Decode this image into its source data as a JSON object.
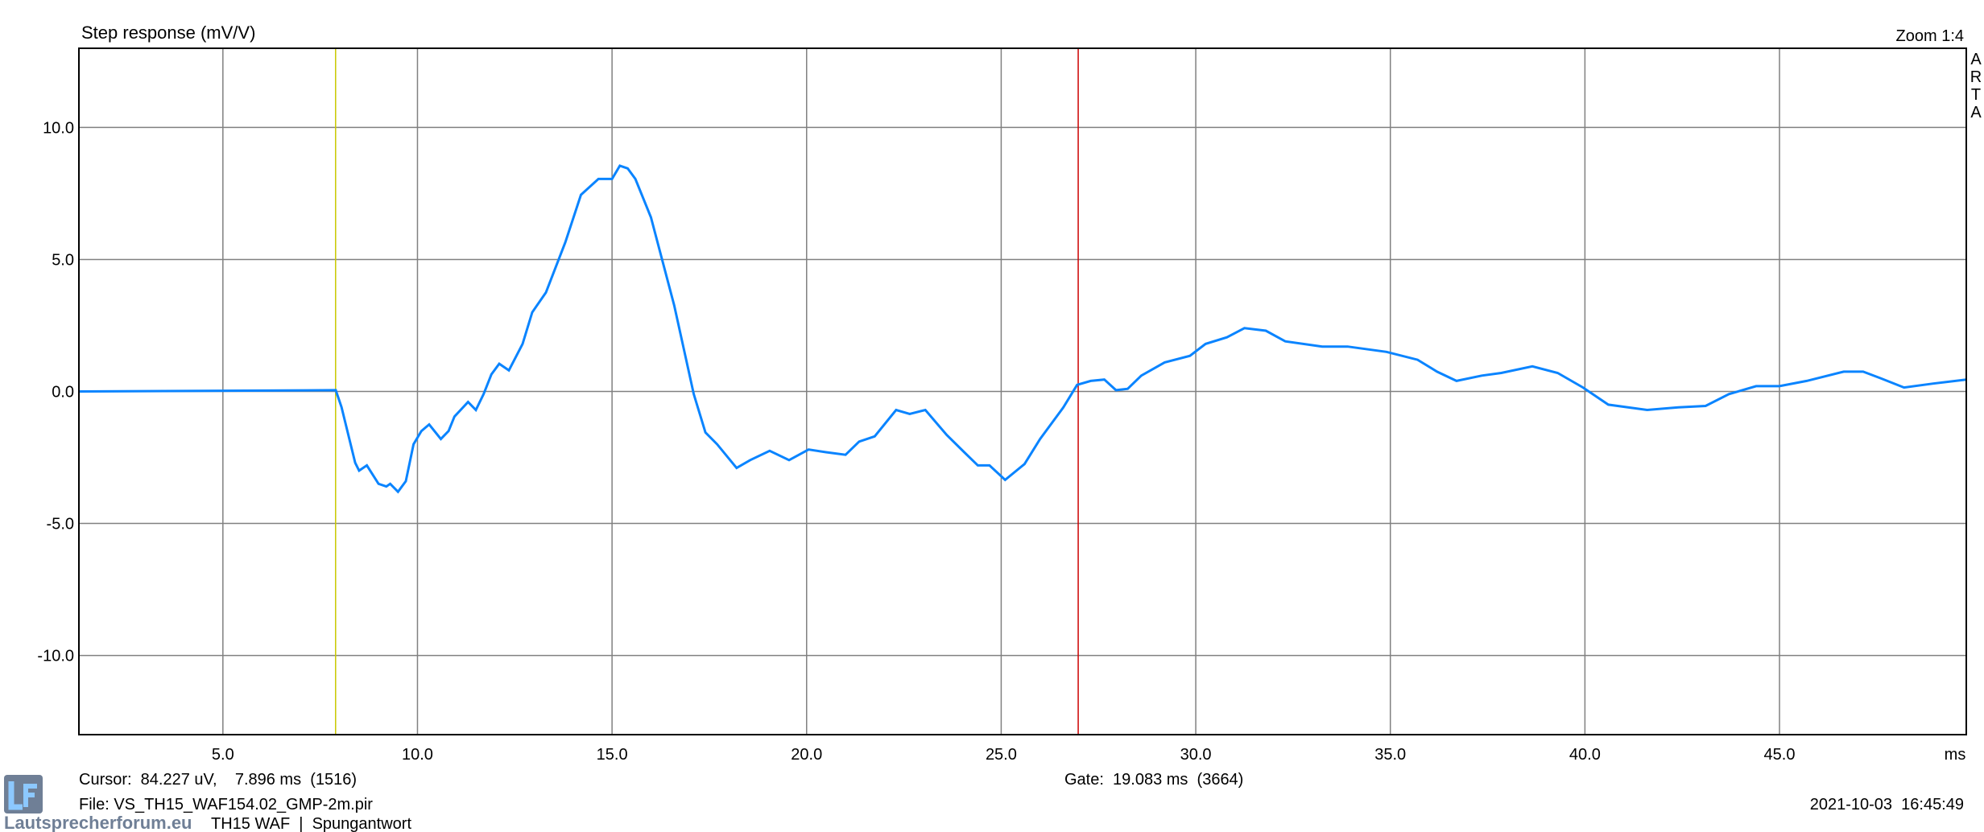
{
  "chart_data": {
    "type": "line",
    "title": "Step response (mV/V)",
    "zoom_label": "Zoom 1:4",
    "brand_vertical": "ARTA",
    "xlabel": "ms",
    "ylabel": "",
    "xlim": [
      1.3,
      49.8
    ],
    "ylim": [
      -13,
      13
    ],
    "x_ticks": [
      5,
      10,
      15,
      20,
      25,
      30,
      35,
      40,
      45
    ],
    "x_tick_labels": [
      "5.0",
      "10.0",
      "15.0",
      "20.0",
      "25.0",
      "30.0",
      "35.0",
      "40.0",
      "45.0"
    ],
    "y_ticks": [
      10,
      5,
      0,
      -5,
      -10
    ],
    "y_tick_labels": [
      "10.0",
      "5.0",
      "0.0",
      "-5.0",
      "-10.0"
    ],
    "grid": true,
    "cursor_ms": 7.896,
    "gate_end_ms": 26.979,
    "colors": {
      "series": "#0a84ff",
      "cursor": "#c8c800",
      "gate": "#cc0000",
      "grid": "#808080",
      "frame": "#000000"
    },
    "series": [
      {
        "x": [
          1.3,
          7.9,
          8.05,
          8.4,
          8.5,
          8.7,
          9.0,
          9.2,
          9.3,
          9.5,
          9.7,
          9.9,
          10.1,
          10.3,
          10.6,
          10.8,
          10.95,
          11.3,
          11.5,
          11.7,
          11.9,
          12.1,
          12.35,
          12.7,
          12.95,
          13.3,
          13.8,
          14.2,
          14.65,
          15.0,
          15.2,
          15.4,
          15.6,
          16.0,
          16.6,
          17.1,
          17.4,
          17.7,
          18.2,
          18.55,
          19.05,
          19.55,
          20.05,
          20.5,
          21.0,
          21.35,
          21.75,
          22.3,
          22.65,
          23.05,
          23.6,
          24.05,
          24.4,
          24.7,
          25.1,
          25.6,
          26.0,
          26.6,
          26.95,
          27.3,
          27.65,
          27.95,
          28.25,
          28.6,
          29.2,
          29.85,
          30.25,
          30.8,
          31.25,
          31.8,
          32.3,
          33.25,
          33.9,
          34.9,
          35.7,
          36.2,
          36.7,
          37.35,
          37.85,
          38.65,
          39.3,
          39.95,
          40.6,
          41.6,
          42.4,
          43.1,
          43.7,
          44.4,
          45.0,
          45.7,
          46.65,
          47.15,
          47.6,
          48.2,
          48.95,
          49.8
        ],
        "y": [
          0,
          0.05,
          -0.6,
          -2.7,
          -3.0,
          -2.8,
          -3.5,
          -3.6,
          -3.5,
          -3.8,
          -3.4,
          -2.0,
          -1.5,
          -1.25,
          -1.8,
          -1.5,
          -0.95,
          -0.4,
          -0.7,
          -0.1,
          0.65,
          1.05,
          0.8,
          1.8,
          3.0,
          3.75,
          5.65,
          7.45,
          8.05,
          8.05,
          8.55,
          8.45,
          8.05,
          6.6,
          3.25,
          -0.1,
          -1.55,
          -2.0,
          -2.9,
          -2.6,
          -2.25,
          -2.6,
          -2.2,
          -2.3,
          -2.4,
          -1.9,
          -1.7,
          -0.7,
          -0.85,
          -0.7,
          -1.65,
          -2.3,
          -2.8,
          -2.8,
          -3.35,
          -2.75,
          -1.8,
          -0.6,
          0.25,
          0.4,
          0.45,
          0.05,
          0.1,
          0.6,
          1.1,
          1.35,
          1.8,
          2.05,
          2.4,
          2.3,
          1.9,
          1.7,
          1.7,
          1.5,
          1.2,
          0.75,
          0.4,
          0.6,
          0.7,
          0.95,
          0.7,
          0.15,
          -0.5,
          -0.7,
          -0.6,
          -0.55,
          -0.1,
          0.2,
          0.2,
          0.4,
          0.75,
          0.75,
          0.5,
          0.15,
          0.3,
          0.45
        ]
      }
    ]
  },
  "footer": {
    "cursor": "Cursor:  84.227 uV,    7.896 ms  (1516)",
    "gate": "Gate:  19.083 ms  (3664)",
    "file": "File: VS_TH15_WAF154.02_GMP-2m.pir",
    "date": "2021-10-03  16:45:49",
    "caption": "TH15 WAF  |  Spungantwort"
  },
  "watermark": {
    "logo": "LF",
    "text": "Lautsprecherforum.eu"
  }
}
